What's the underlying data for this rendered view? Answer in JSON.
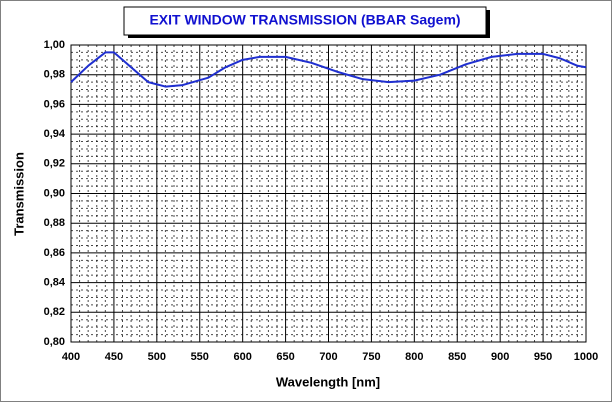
{
  "chart_data": {
    "type": "line",
    "title": "EXIT WINDOW TRANSMISSION (BBAR Sagem)",
    "x_label": "Wavelength [nm]",
    "y_label": "Transmission",
    "x": [
      400,
      420,
      440,
      450,
      470,
      490,
      510,
      530,
      560,
      580,
      600,
      620,
      650,
      680,
      710,
      740,
      770,
      800,
      830,
      860,
      890,
      920,
      950,
      970,
      990,
      1000
    ],
    "series": [
      {
        "name": "Transmission",
        "color": "#1f2fd0",
        "values": [
          0.975,
          0.986,
          0.995,
          0.995,
          0.985,
          0.975,
          0.972,
          0.973,
          0.978,
          0.985,
          0.99,
          0.992,
          0.992,
          0.988,
          0.982,
          0.977,
          0.975,
          0.976,
          0.98,
          0.987,
          0.992,
          0.994,
          0.994,
          0.991,
          0.986,
          0.985
        ]
      }
    ],
    "xlim": [
      400,
      1000
    ],
    "xticks": [
      400,
      450,
      500,
      550,
      600,
      650,
      700,
      750,
      800,
      850,
      900,
      950,
      1000
    ],
    "ylim": [
      0.8,
      1.0
    ],
    "yticks": [
      {
        "value": 0.8,
        "label": "0,80"
      },
      {
        "value": 0.82,
        "label": "0,82"
      },
      {
        "value": 0.84,
        "label": "0,84"
      },
      {
        "value": 0.86,
        "label": "0,86"
      },
      {
        "value": 0.88,
        "label": "0,88"
      },
      {
        "value": 0.9,
        "label": "0,90"
      },
      {
        "value": 0.92,
        "label": "0,92"
      },
      {
        "value": 0.94,
        "label": "0,94"
      },
      {
        "value": 0.96,
        "label": "0,96"
      },
      {
        "value": 0.98,
        "label": "0,98"
      },
      {
        "value": 1.0,
        "label": "1,00"
      }
    ],
    "grid": true,
    "minor_grid": true
  }
}
